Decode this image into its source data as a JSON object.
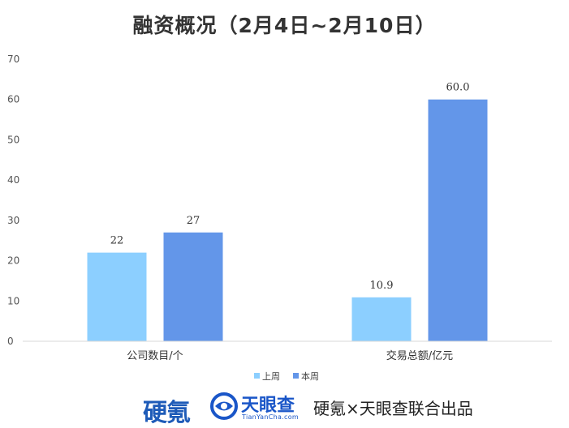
{
  "chart_data": {
    "type": "bar",
    "title": "融资概况（2月4日~2月10日）",
    "categories": [
      "公司数目/个",
      "交易总额/亿元"
    ],
    "series": [
      {
        "name": "上周",
        "values": [
          22,
          10.9
        ],
        "labels": [
          "22",
          "10.9"
        ],
        "color": "#8ccfff"
      },
      {
        "name": "本周",
        "values": [
          27,
          60.0
        ],
        "labels": [
          "27",
          "60.0"
        ],
        "color": "#6396e9"
      }
    ],
    "ylim": [
      0,
      70
    ],
    "yticks": [
      0,
      10,
      20,
      30,
      40,
      50,
      60,
      70
    ],
    "xlabel": "",
    "ylabel": "",
    "grid": false,
    "legend": "bottom-center"
  },
  "footer": {
    "brand_yingqi": "硬氪",
    "brand_tianyancha": "天眼查",
    "brand_tianyancha_sub": "TianYanCha.com",
    "credit": "硬氪×天眼查联合出品",
    "logo_color": "#1a56c8"
  }
}
